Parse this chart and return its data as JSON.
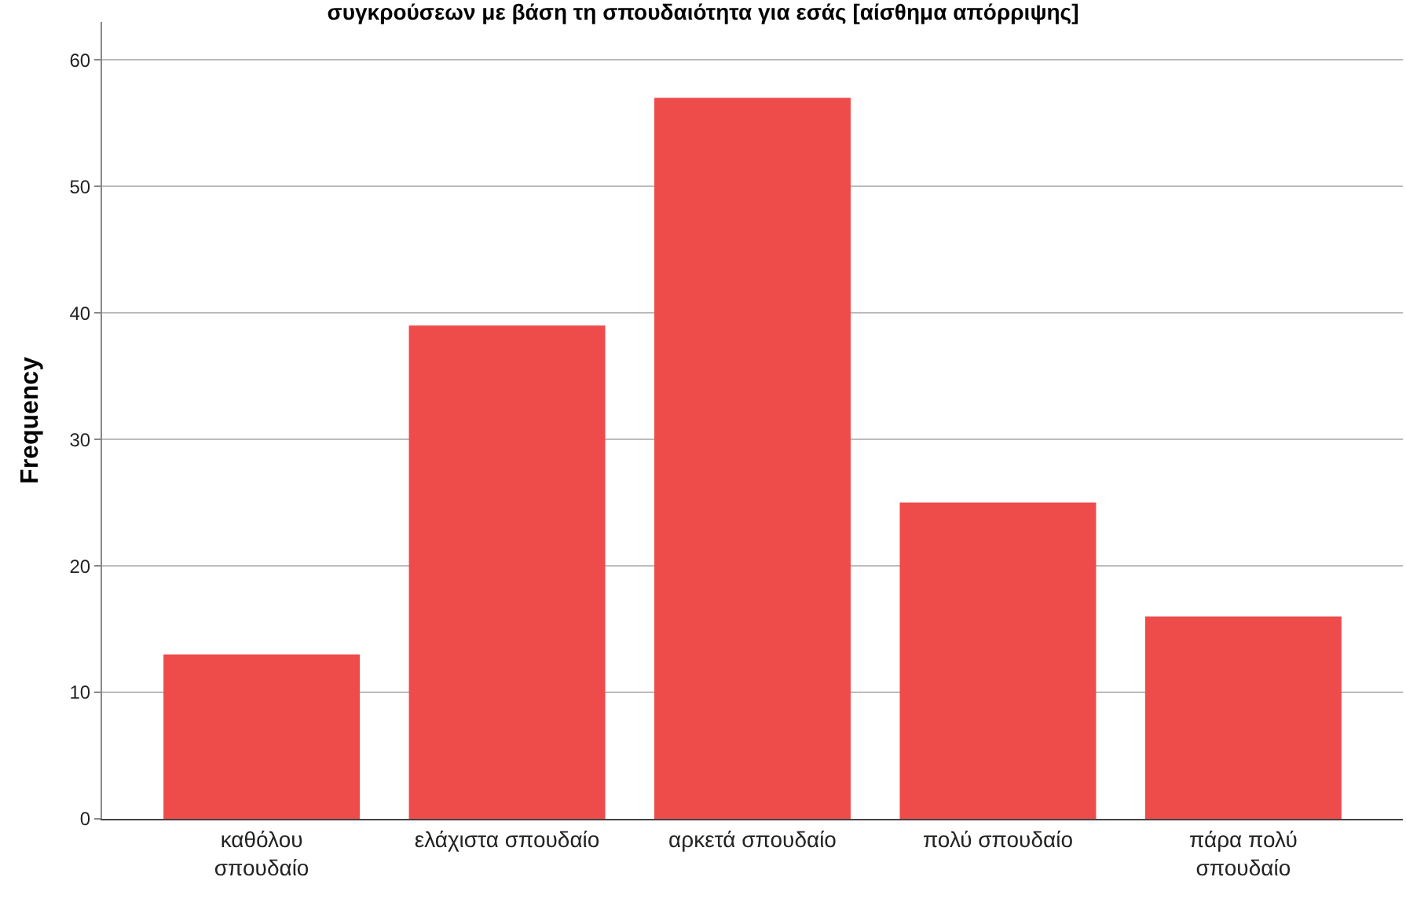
{
  "chart_data": {
    "type": "bar",
    "title": "συγκρούσεων με βάση τη σπουδαιότητα για εσάς [αίσθημα απόρριψης]",
    "ylabel": "Frequency",
    "categories": [
      "καθόλου\nσπουδαίο",
      "ελάχιστα σπουδαίο",
      "αρκετά σπουδαίο",
      "πολύ σπουδαίο",
      "πάρα πολύ\nσπουδαίο"
    ],
    "values": [
      13,
      39,
      57,
      25,
      16
    ],
    "color": "#ee4b4b",
    "ylim": [
      0,
      63
    ],
    "yticks": [
      0,
      10,
      20,
      30,
      40,
      50,
      60
    ],
    "grid": "y",
    "legend": false
  }
}
